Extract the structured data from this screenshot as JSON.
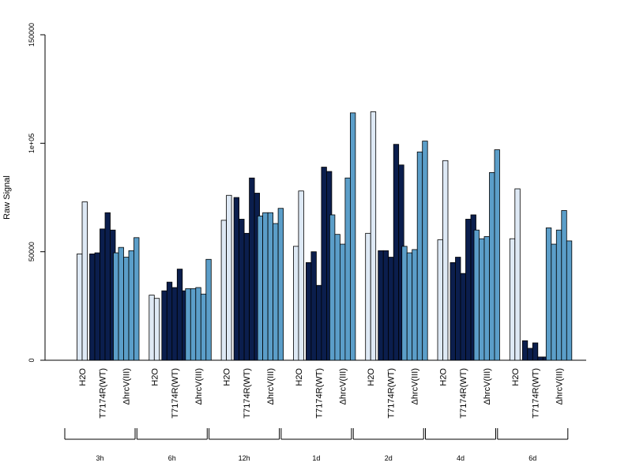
{
  "chart_data": {
    "type": "bar",
    "title": "",
    "xlabel": "",
    "ylabel": "Raw Signal",
    "ylim": [
      0,
      150000
    ],
    "y_ticks": [
      {
        "value": 0,
        "label": "0"
      },
      {
        "value": 50000,
        "label": "50000"
      },
      {
        "value": 100000,
        "label": "1e+05"
      },
      {
        "value": 150000,
        "label": "150000"
      }
    ],
    "category_labels": [
      "H2O",
      "T7174R(WT)",
      "ΔhrcV(III)"
    ],
    "groups": [
      {
        "label": "3h",
        "series": [
          {
            "values": [
              49000,
              73000
            ]
          },
          {
            "values": [
              49000,
              49500,
              60500,
              68000,
              60000
            ]
          },
          {
            "values": [
              49500,
              52000,
              47500,
              50500,
              56500
            ]
          }
        ]
      },
      {
        "label": "6h",
        "series": [
          {
            "values": [
              30000,
              28500
            ]
          },
          {
            "values": [
              32000,
              36000,
              33500,
              42000,
              32000
            ]
          },
          {
            "values": [
              33000,
              33000,
              33500,
              30500,
              46500
            ]
          }
        ]
      },
      {
        "label": "12h",
        "series": [
          {
            "values": [
              64500,
              76000
            ]
          },
          {
            "values": [
              75000,
              65000,
              58500,
              84000,
              77000
            ]
          },
          {
            "values": [
              66500,
              68000,
              68000,
              63000,
              70000
            ]
          }
        ]
      },
      {
        "label": "1d",
        "series": [
          {
            "values": [
              52500,
              78000
            ]
          },
          {
            "values": [
              45000,
              50000,
              34500,
              89000,
              87000
            ]
          },
          {
            "values": [
              67000,
              58000,
              53500,
              84000,
              114000
            ]
          }
        ]
      },
      {
        "label": "2d",
        "series": [
          {
            "values": [
              58500,
              114500
            ]
          },
          {
            "values": [
              50500,
              50500,
              47500,
              99500,
              90000
            ]
          },
          {
            "values": [
              52500,
              49500,
              51000,
              96000,
              101000
            ]
          }
        ]
      },
      {
        "label": "4d",
        "series": [
          {
            "values": [
              55500,
              92000
            ]
          },
          {
            "values": [
              45000,
              47500,
              40000,
              65000,
              67000
            ]
          },
          {
            "values": [
              60000,
              56000,
              57000,
              86500,
              97000
            ]
          }
        ]
      },
      {
        "label": "6d",
        "series": [
          {
            "values": [
              56000,
              79000
            ]
          },
          {
            "values": [
              9000,
              5500,
              8000,
              1500,
              1500
            ]
          },
          {
            "values": [
              61000,
              53500,
              60000,
              69000,
              55000
            ]
          }
        ]
      }
    ],
    "colors": [
      "#dee9f5",
      "#0b1e4d",
      "#5b9ec9"
    ],
    "grid": false,
    "legend": "none"
  }
}
